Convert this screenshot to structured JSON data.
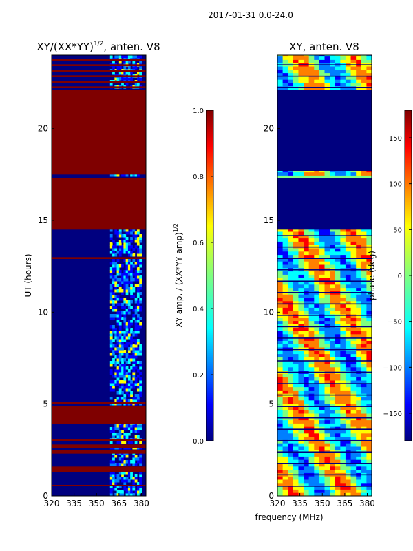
{
  "figure": {
    "suptitle": "2017-01-31 0.0-24.0",
    "shared_xlabel": "frequency (MHz)"
  },
  "colors": {
    "jet": [
      "#00007f",
      "#0000ff",
      "#007fff",
      "#00ffff",
      "#7fff7f",
      "#ffff00",
      "#ff7f00",
      "#ff0000",
      "#7f0000"
    ],
    "axes_edge": "#000000",
    "background": "#ffffff"
  },
  "chart_data": [
    {
      "type": "heatmap",
      "title_main": "XY/(XX*YY)",
      "title_exp": "1/2",
      "title_tail": ", anten. V8",
      "xlabel": "",
      "ylabel": "UT (hours)",
      "xlim": [
        320,
        383
      ],
      "ylim": [
        0,
        24
      ],
      "xticks": [
        320,
        335,
        350,
        365,
        380
      ],
      "yticks": [
        0,
        5,
        10,
        15,
        20
      ],
      "colorbar": {
        "label_main": "XY amp. / (XX*YY amp)",
        "label_exp": "1/2",
        "range": [
          0.0,
          1.0
        ],
        "ticks": [
          "0.0",
          "0.2",
          "0.4",
          "0.6",
          "0.8",
          "1.0"
        ],
        "tick_values": [
          0.0,
          0.2,
          0.4,
          0.6,
          0.8,
          1.0
        ]
      },
      "saturated_blocks_hours": [
        [
          0.55,
          0.6
        ],
        [
          1.3,
          1.5
        ],
        [
          1.5,
          1.6
        ],
        [
          2.3,
          2.5
        ],
        [
          2.6,
          2.8
        ],
        [
          3.0,
          3.1
        ],
        [
          3.9,
          4.9
        ],
        [
          5.0,
          5.1
        ],
        [
          12.9,
          13.0
        ],
        [
          14.5,
          17.3
        ],
        [
          17.5,
          22.1
        ]
      ],
      "active_band_mhz": [
        359,
        380
      ]
    },
    {
      "type": "heatmap",
      "title_main": "XY, anten. V8",
      "xlabel": "frequency (MHz)",
      "ylabel": "",
      "xlim": [
        320,
        383
      ],
      "ylim": [
        0,
        24
      ],
      "xticks": [
        320,
        335,
        350,
        365,
        380
      ],
      "yticks": [
        0,
        5,
        10,
        15,
        20
      ],
      "colorbar": {
        "label": "phase (deg)",
        "range": [
          -180,
          180
        ],
        "ticks": [
          "150",
          "100",
          "50",
          "0",
          "−50",
          "−100",
          "−150"
        ],
        "tick_values": [
          150,
          100,
          50,
          0,
          -50,
          -100,
          -150
        ]
      },
      "flagged_blocks_hours": [
        [
          14.5,
          17.3
        ],
        [
          17.7,
          22.1
        ]
      ]
    }
  ]
}
